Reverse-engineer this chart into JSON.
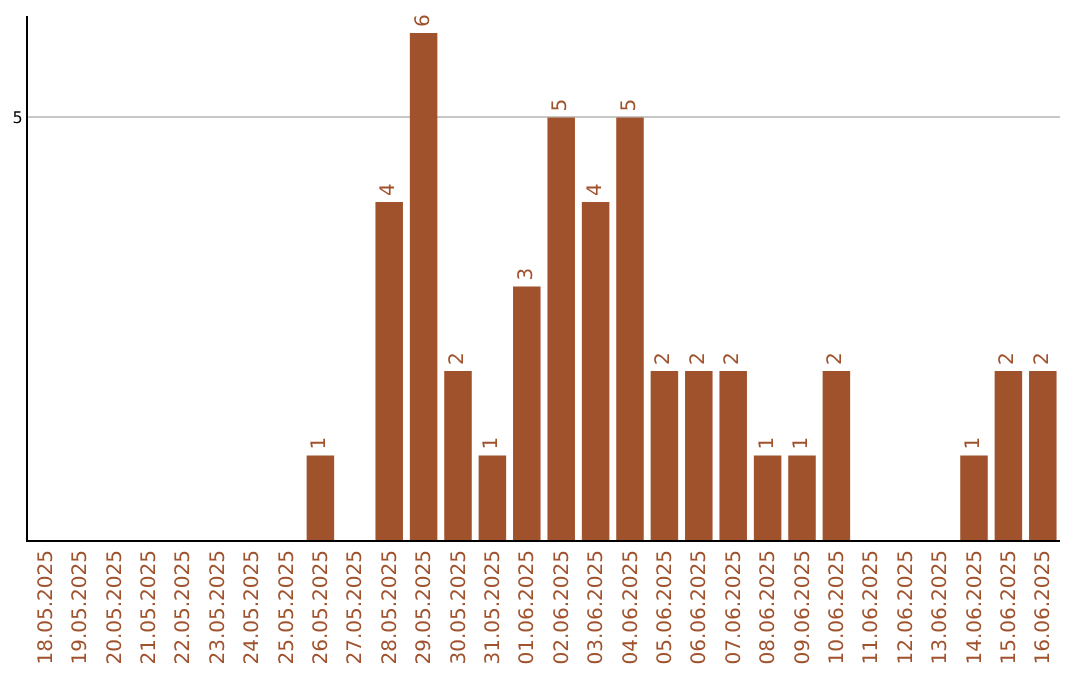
{
  "chart_data": {
    "type": "bar",
    "categories": [
      "18.05.2025",
      "19.05.2025",
      "20.05.2025",
      "21.05.2025",
      "22.05.2025",
      "23.05.2025",
      "24.05.2025",
      "25.05.2025",
      "26.05.2025",
      "27.05.2025",
      "28.05.2025",
      "29.05.2025",
      "30.05.2025",
      "31.05.2025",
      "01.06.2025",
      "02.06.2025",
      "03.06.2025",
      "04.06.2025",
      "05.06.2025",
      "06.06.2025",
      "07.06.2025",
      "08.06.2025",
      "09.06.2025",
      "10.06.2025",
      "11.06.2025",
      "12.06.2025",
      "13.06.2025",
      "14.06.2025",
      "15.06.2025",
      "16.06.2025"
    ],
    "values": [
      0,
      0,
      0,
      0,
      0,
      0,
      0,
      0,
      1,
      0,
      4,
      6,
      2,
      1,
      3,
      5,
      4,
      5,
      2,
      2,
      2,
      1,
      1,
      2,
      0,
      0,
      0,
      1,
      2,
      2
    ],
    "value_labels": [
      null,
      null,
      null,
      null,
      null,
      null,
      null,
      null,
      "1",
      null,
      "4",
      "6",
      "2",
      "1",
      "3",
      "5",
      "4",
      "5",
      "2",
      "2",
      "2",
      "1",
      "1",
      "2",
      null,
      null,
      null,
      "1",
      "2",
      "2"
    ],
    "color": "#a0522d",
    "ylim": [
      0,
      6.2
    ],
    "yticks": [
      5
    ],
    "grid": "y",
    "legend": false
  }
}
